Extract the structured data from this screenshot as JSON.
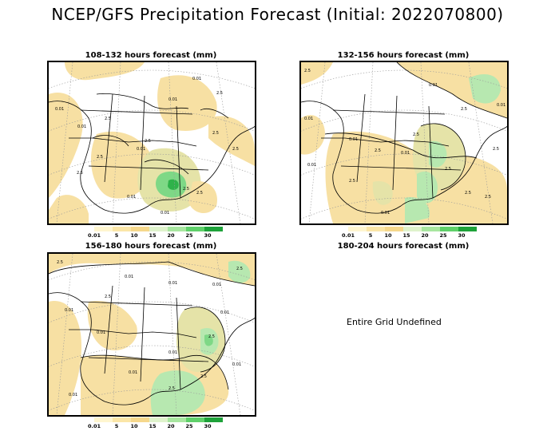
{
  "title": "NCEP/GFS Precipitation Forecast (Initial: 2022070800)",
  "panels": [
    {
      "label": "108-132 hours forecast (mm)",
      "contour_labels": [
        "0.01",
        "0.01",
        "2.5",
        "2.5",
        "0.01",
        "2.5",
        "2.5",
        "0.01",
        "2.5",
        "0.01",
        "2.5",
        "2.5",
        "0.01",
        "2.5",
        "2.5",
        "0.01"
      ]
    },
    {
      "label": "132-156 hours forecast (mm)",
      "contour_labels": [
        "2.5",
        "0.01",
        "0.01",
        "0.01",
        "2.5",
        "2.5",
        "2.5",
        "0.01",
        "2.5",
        "2.5",
        "0.01",
        "2.5",
        "2.5",
        "0.01",
        "0.01",
        "2.5"
      ]
    },
    {
      "label": "156-180 hours forecast (mm)",
      "contour_labels": [
        "2.5",
        "0.01",
        "2.5",
        "0.01",
        "0.01",
        "0.01",
        "0.01",
        "2.5",
        "0.01",
        "0.01",
        "2.5",
        "2.5",
        "0.01",
        "2.5",
        "0.01",
        "0.01"
      ]
    },
    {
      "label": "180-204 hours forecast (mm)",
      "message": "Entire Grid Undefined"
    }
  ],
  "colorbar": {
    "labels": [
      "0.01",
      "5",
      "10",
      "15",
      "20",
      "25",
      "30"
    ],
    "colors": [
      "#fff6d0",
      "#fbe6a8",
      "#f6d88c",
      "#dff3cc",
      "#a8e6a0",
      "#5fd06a",
      "#1ea23a"
    ]
  },
  "map_colors": {
    "dry": "#ffffff",
    "light": "#f7e0a3",
    "moderate": "#e5e3a8",
    "green_light": "#b7e8b0",
    "green_mid": "#7ed886",
    "green_dark": "#2fb24a"
  }
}
